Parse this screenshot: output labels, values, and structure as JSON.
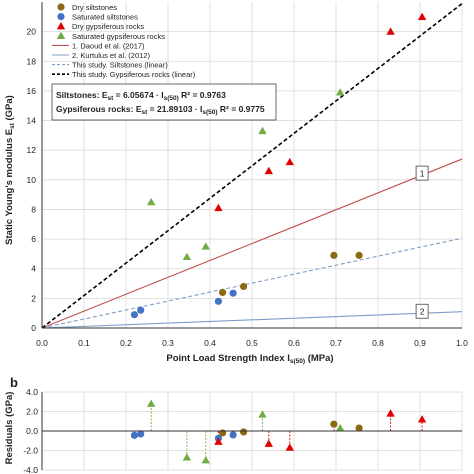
{
  "chart_data": [
    {
      "type": "scatter",
      "panel": "a",
      "xlabel": "Point Load Strength Index I",
      "xlabel_sub": "s(50)",
      "xlabel_unit": " (MPa)",
      "ylabel": "Static Young's modulus E",
      "ylabel_sub": "st",
      "ylabel_unit": " (GPa)",
      "xlim": [
        0,
        1.0
      ],
      "ylim": [
        0,
        22
      ],
      "xticks": [
        "0.0",
        "0.1",
        "0.2",
        "0.3",
        "0.4",
        "0.5",
        "0.6",
        "0.7",
        "0.8",
        "0.9",
        "1.0"
      ],
      "yticks": [
        "0",
        "2",
        "4",
        "6",
        "8",
        "10",
        "12",
        "14",
        "16",
        "18",
        "20"
      ],
      "grid": true,
      "legend_position": "top-right",
      "series": [
        {
          "name": "Dry siltstones",
          "marker": "circle",
          "color": "#8B6914",
          "points": [
            [
              0.43,
              2.4
            ],
            [
              0.48,
              2.8
            ],
            [
              0.695,
              4.9
            ],
            [
              0.755,
              4.9
            ]
          ]
        },
        {
          "name": "Saturated siltstones",
          "marker": "circle",
          "color": "#4472C4",
          "points": [
            [
              0.22,
              0.9
            ],
            [
              0.235,
              1.2
            ],
            [
              0.42,
              1.8
            ],
            [
              0.455,
              2.35
            ]
          ]
        },
        {
          "name": "Dry gypsiferous rocks",
          "marker": "triangle",
          "color": "#E00000",
          "points": [
            [
              0.42,
              8.1
            ],
            [
              0.54,
              10.6
            ],
            [
              0.59,
              11.2
            ],
            [
              0.83,
              20.0
            ],
            [
              0.905,
              21.0
            ]
          ]
        },
        {
          "name": "Saturated gypsiferous rocks",
          "marker": "triangle",
          "color": "#70AD47",
          "points": [
            [
              0.26,
              8.5
            ],
            [
              0.345,
              4.8
            ],
            [
              0.39,
              5.5
            ],
            [
              0.525,
              13.3
            ],
            [
              0.71,
              15.9
            ]
          ]
        }
      ],
      "lines": [
        {
          "name": "1. Daoud et al. (2017)",
          "style": "solid",
          "color": "#C0504D",
          "slope": 11.4,
          "label": "1"
        },
        {
          "name": "2. Kurtulus et al. (2012)",
          "style": "solid",
          "color": "#7F9FC8",
          "slope": 1.1,
          "label": "2"
        },
        {
          "name": "This study. Siltstones (linear)",
          "style": "dashed",
          "color": "#7F9FC8",
          "slope": 6.05674
        },
        {
          "name": "This study. Gypsiferous rocks (linear)",
          "style": "dashed-black",
          "color": "#000000",
          "slope": 21.89103
        }
      ],
      "equations": [
        {
          "label": "Siltstones:",
          "formula": "E",
          "formula_sub": "st",
          "formula_rest": " = 6.05674 · I",
          "formula_sub2": "s(50)",
          "r2": "R² = 0.9763"
        },
        {
          "label": "Gypsiferous rocks:",
          "formula": "E",
          "formula_sub": "st",
          "formula_rest": " = 21.89103 · I",
          "formula_sub2": "s(50)",
          "r2": "R² = 0.9775"
        }
      ]
    },
    {
      "type": "scatter",
      "panel": "b",
      "ylabel": "Residuals (GPa)",
      "xlim": [
        0,
        1.0
      ],
      "ylim": [
        -4,
        4
      ],
      "yticks": [
        "4.0",
        "2.0",
        "0.0",
        "-2.0",
        "-4.0"
      ],
      "grid": true,
      "series": [
        {
          "name": "Dry siltstones",
          "marker": "circle",
          "color": "#8B6914",
          "points": [
            [
              0.43,
              -0.2
            ],
            [
              0.48,
              -0.1
            ],
            [
              0.695,
              0.7
            ],
            [
              0.755,
              0.3
            ]
          ]
        },
        {
          "name": "Saturated siltstones",
          "marker": "circle",
          "color": "#4472C4",
          "points": [
            [
              0.22,
              -0.45
            ],
            [
              0.235,
              -0.3
            ],
            [
              0.42,
              -0.75
            ],
            [
              0.455,
              -0.4
            ]
          ]
        },
        {
          "name": "Dry gypsiferous rocks",
          "marker": "triangle",
          "color": "#E00000",
          "points": [
            [
              0.42,
              -1.1
            ],
            [
              0.54,
              -1.3
            ],
            [
              0.59,
              -1.7
            ],
            [
              0.83,
              1.8
            ],
            [
              0.905,
              1.2
            ]
          ]
        },
        {
          "name": "Saturated gypsiferous rocks",
          "marker": "triangle",
          "color": "#70AD47",
          "points": [
            [
              0.26,
              2.8
            ],
            [
              0.345,
              -2.7
            ],
            [
              0.39,
              -3.0
            ],
            [
              0.525,
              1.7
            ],
            [
              0.71,
              0.3
            ]
          ]
        }
      ]
    }
  ],
  "panel_labels": {
    "b": "b"
  }
}
